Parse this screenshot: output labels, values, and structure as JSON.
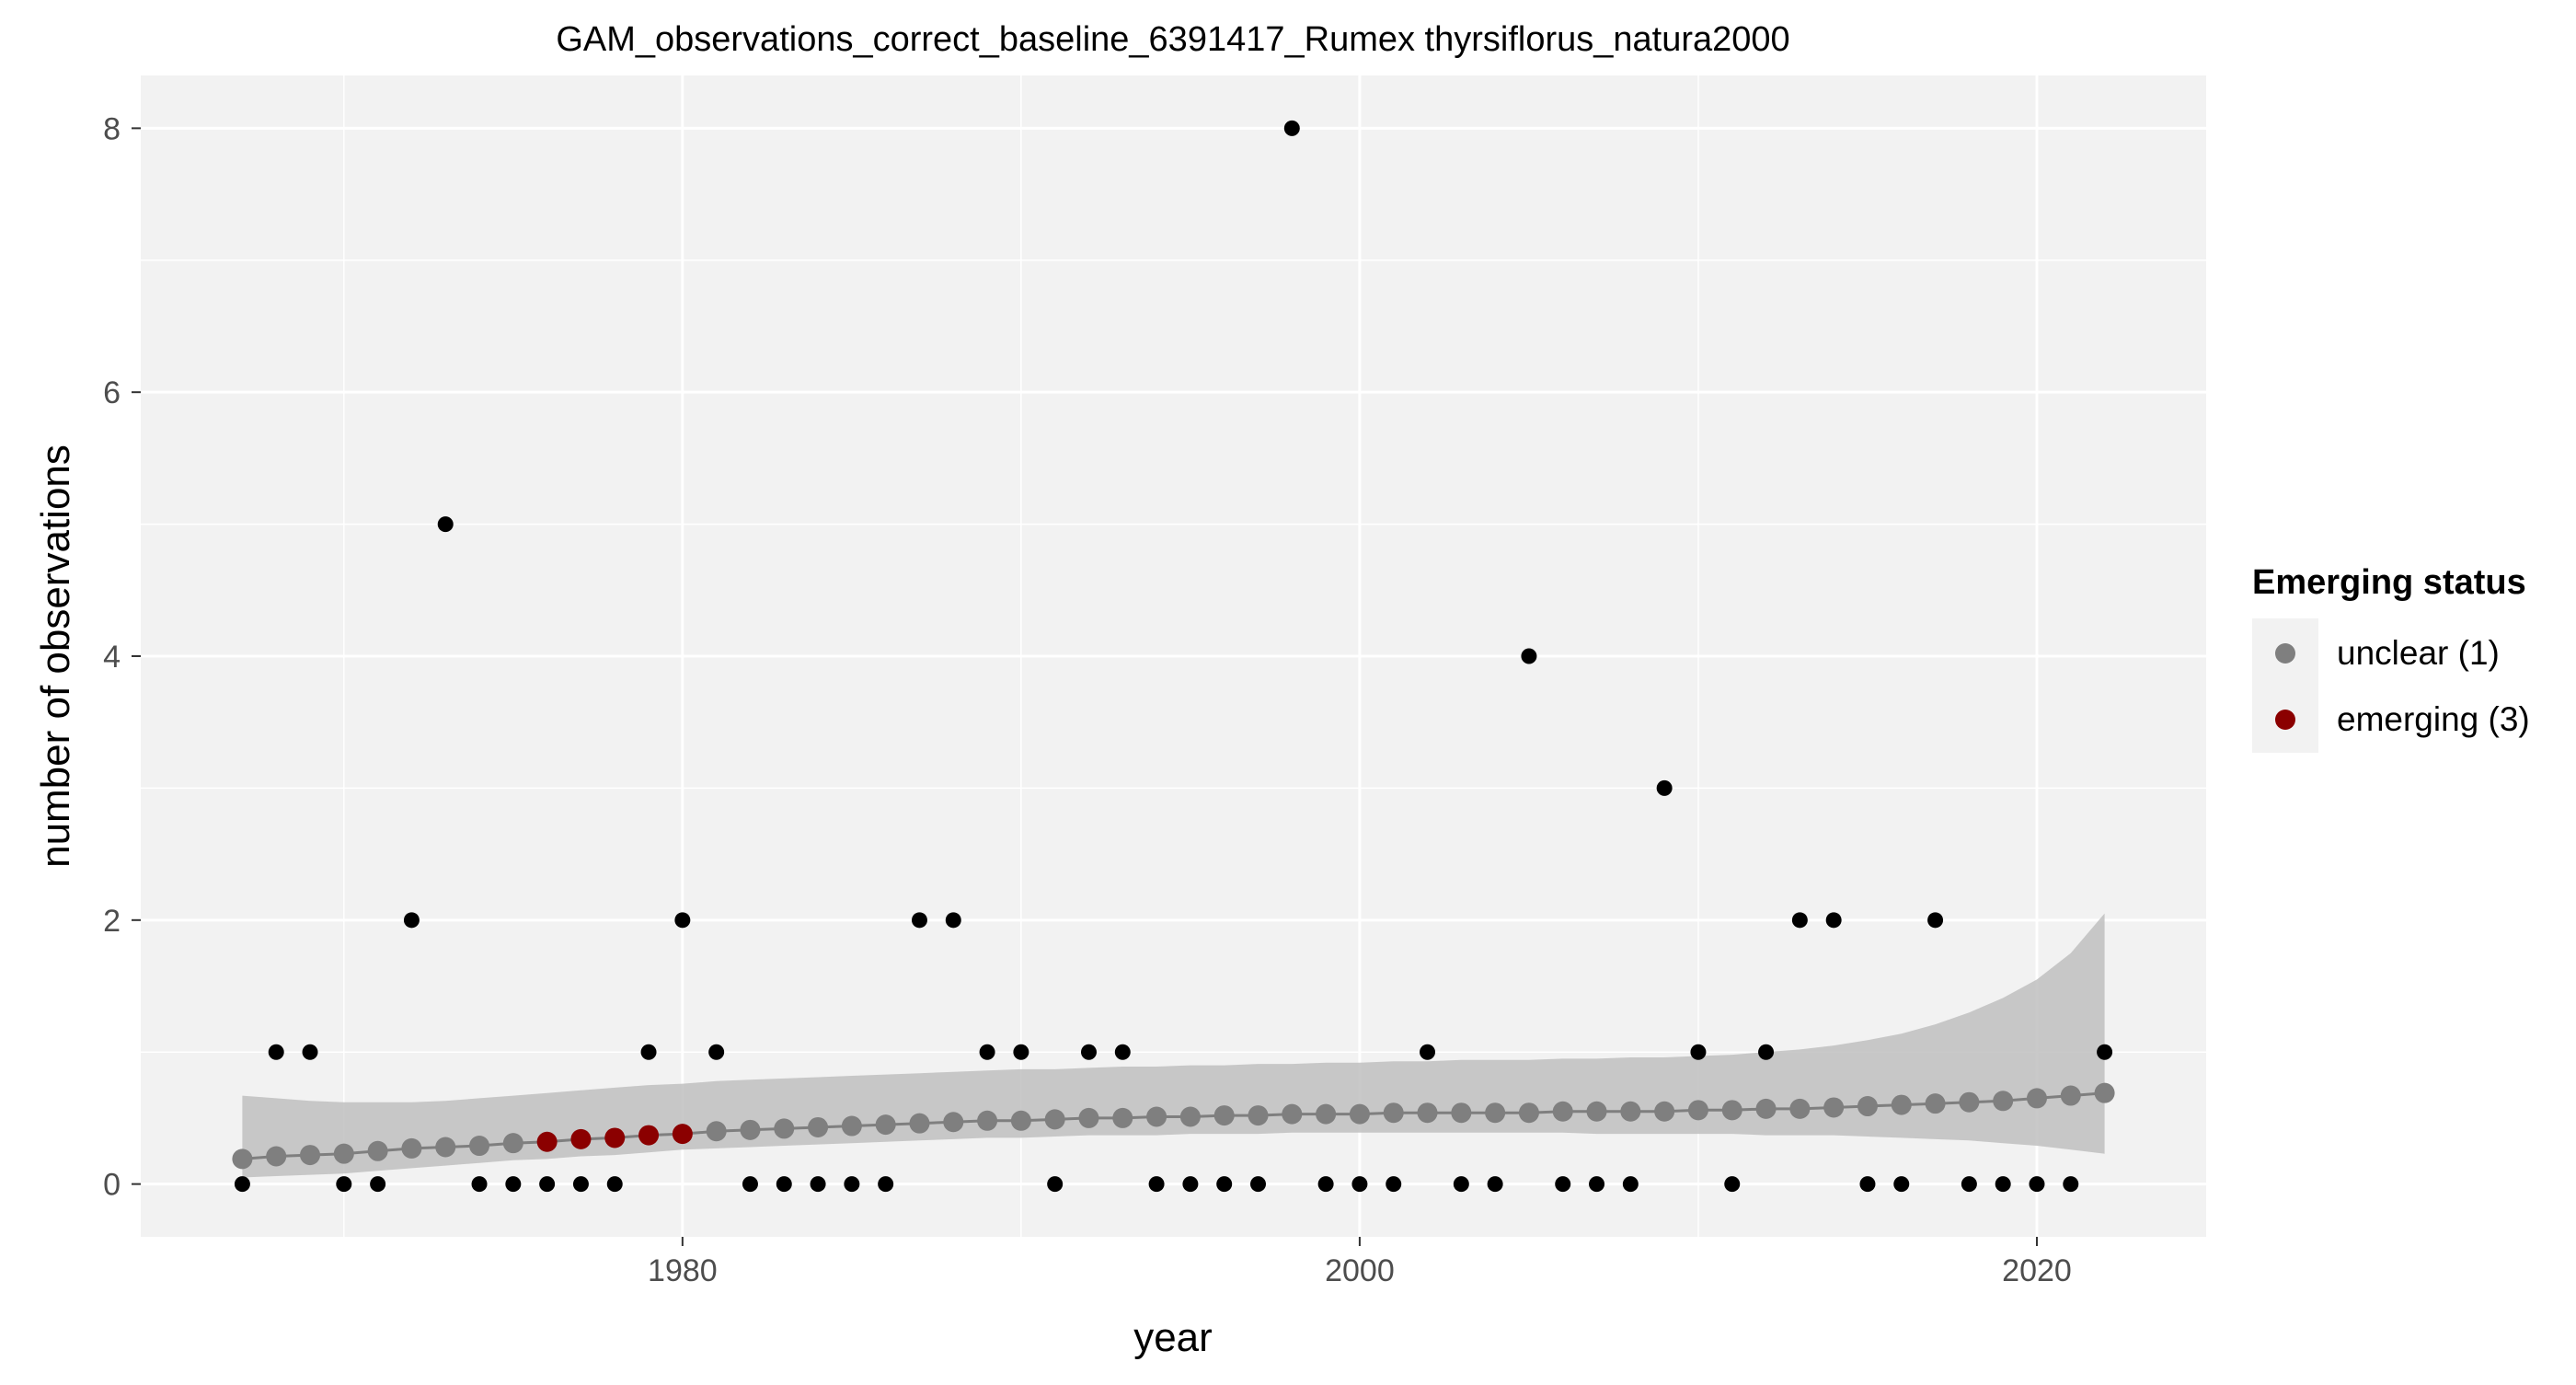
{
  "chart_data": {
    "type": "scatter",
    "title": "GAM_observations_correct_baseline_6391417_Rumex thyrsiflorus_natura2000",
    "xlabel": "year",
    "ylabel": "number of observations",
    "xlim": [
      1964,
      2025
    ],
    "ylim": [
      -0.4,
      8.4
    ],
    "x_ticks": [
      1980,
      2000,
      2020
    ],
    "y_ticks": [
      0,
      2,
      4,
      6,
      8
    ],
    "grid": true,
    "legend_position": "right",
    "legend": {
      "title": "Emerging status",
      "entries": [
        {
          "label": "unclear (1)",
          "color": "#7f7f7f"
        },
        {
          "label": "emerging (3)",
          "color": "#8b0000"
        }
      ]
    },
    "colors": {
      "panel_bg": "#f2f2f2",
      "grid": "#ffffff",
      "observed": "#000000",
      "ribbon": "#c0c0c0",
      "line": "#7f7f7f",
      "unclear": "#7f7f7f",
      "emerging": "#8b0000"
    },
    "observed": {
      "x": [
        1967,
        1968,
        1969,
        1970,
        1971,
        1972,
        1973,
        1974,
        1975,
        1976,
        1977,
        1978,
        1979,
        1980,
        1981,
        1982,
        1983,
        1984,
        1985,
        1986,
        1987,
        1988,
        1989,
        1990,
        1991,
        1992,
        1993,
        1994,
        1995,
        1996,
        1997,
        1998,
        1999,
        2000,
        2001,
        2002,
        2003,
        2004,
        2005,
        2006,
        2007,
        2008,
        2009,
        2010,
        2011,
        2012,
        2013,
        2014,
        2015,
        2016,
        2017,
        2018,
        2019,
        2020,
        2021,
        2022
      ],
      "y": [
        0,
        1,
        1,
        0,
        0,
        2,
        5,
        0,
        0,
        0,
        0,
        0,
        1,
        2,
        1,
        0,
        0,
        0,
        0,
        0,
        2,
        2,
        1,
        1,
        0,
        1,
        1,
        0,
        0,
        0,
        0,
        8,
        0,
        0,
        0,
        1,
        0,
        0,
        4,
        0,
        0,
        0,
        3,
        1,
        0,
        1,
        2,
        2,
        0,
        0,
        2,
        0,
        0,
        0,
        0,
        1
      ]
    },
    "trend": {
      "x": [
        1967,
        1968,
        1969,
        1970,
        1971,
        1972,
        1973,
        1974,
        1975,
        1976,
        1977,
        1978,
        1979,
        1980,
        1981,
        1982,
        1983,
        1984,
        1985,
        1986,
        1987,
        1988,
        1989,
        1990,
        1991,
        1992,
        1993,
        1994,
        1995,
        1996,
        1997,
        1998,
        1999,
        2000,
        2001,
        2002,
        2003,
        2004,
        2005,
        2006,
        2007,
        2008,
        2009,
        2010,
        2011,
        2012,
        2013,
        2014,
        2015,
        2016,
        2017,
        2018,
        2019,
        2020,
        2021,
        2022
      ],
      "y": [
        0.19,
        0.21,
        0.22,
        0.23,
        0.25,
        0.27,
        0.28,
        0.29,
        0.31,
        0.32,
        0.34,
        0.35,
        0.37,
        0.38,
        0.4,
        0.41,
        0.42,
        0.43,
        0.44,
        0.45,
        0.46,
        0.47,
        0.48,
        0.48,
        0.49,
        0.5,
        0.5,
        0.51,
        0.51,
        0.52,
        0.52,
        0.53,
        0.53,
        0.53,
        0.54,
        0.54,
        0.54,
        0.54,
        0.54,
        0.55,
        0.55,
        0.55,
        0.55,
        0.56,
        0.56,
        0.57,
        0.57,
        0.58,
        0.59,
        0.6,
        0.61,
        0.62,
        0.63,
        0.65,
        0.67,
        0.69
      ],
      "lower": [
        0.05,
        0.06,
        0.07,
        0.08,
        0.1,
        0.12,
        0.14,
        0.16,
        0.18,
        0.19,
        0.21,
        0.22,
        0.24,
        0.26,
        0.27,
        0.28,
        0.29,
        0.3,
        0.31,
        0.32,
        0.33,
        0.34,
        0.35,
        0.35,
        0.36,
        0.37,
        0.37,
        0.37,
        0.38,
        0.38,
        0.38,
        0.39,
        0.39,
        0.39,
        0.39,
        0.39,
        0.39,
        0.39,
        0.39,
        0.39,
        0.38,
        0.38,
        0.38,
        0.38,
        0.38,
        0.37,
        0.37,
        0.37,
        0.36,
        0.35,
        0.34,
        0.33,
        0.31,
        0.29,
        0.26,
        0.23
      ],
      "upper": [
        0.67,
        0.65,
        0.63,
        0.62,
        0.62,
        0.62,
        0.63,
        0.65,
        0.67,
        0.69,
        0.71,
        0.73,
        0.75,
        0.76,
        0.78,
        0.79,
        0.8,
        0.81,
        0.82,
        0.83,
        0.84,
        0.85,
        0.86,
        0.87,
        0.87,
        0.88,
        0.89,
        0.89,
        0.9,
        0.9,
        0.91,
        0.91,
        0.92,
        0.92,
        0.93,
        0.93,
        0.94,
        0.94,
        0.94,
        0.95,
        0.95,
        0.96,
        0.96,
        0.97,
        0.98,
        1.0,
        1.02,
        1.05,
        1.09,
        1.14,
        1.21,
        1.3,
        1.41,
        1.55,
        1.75,
        2.05
      ],
      "status": [
        "unclear",
        "unclear",
        "unclear",
        "unclear",
        "unclear",
        "unclear",
        "unclear",
        "unclear",
        "unclear",
        "emerging",
        "emerging",
        "emerging",
        "emerging",
        "emerging",
        "unclear",
        "unclear",
        "unclear",
        "unclear",
        "unclear",
        "unclear",
        "unclear",
        "unclear",
        "unclear",
        "unclear",
        "unclear",
        "unclear",
        "unclear",
        "unclear",
        "unclear",
        "unclear",
        "unclear",
        "unclear",
        "unclear",
        "unclear",
        "unclear",
        "unclear",
        "unclear",
        "unclear",
        "unclear",
        "unclear",
        "unclear",
        "unclear",
        "unclear",
        "unclear",
        "unclear",
        "unclear",
        "unclear",
        "unclear",
        "unclear",
        "unclear",
        "unclear",
        "unclear",
        "unclear",
        "unclear",
        "unclear",
        "unclear"
      ]
    }
  }
}
